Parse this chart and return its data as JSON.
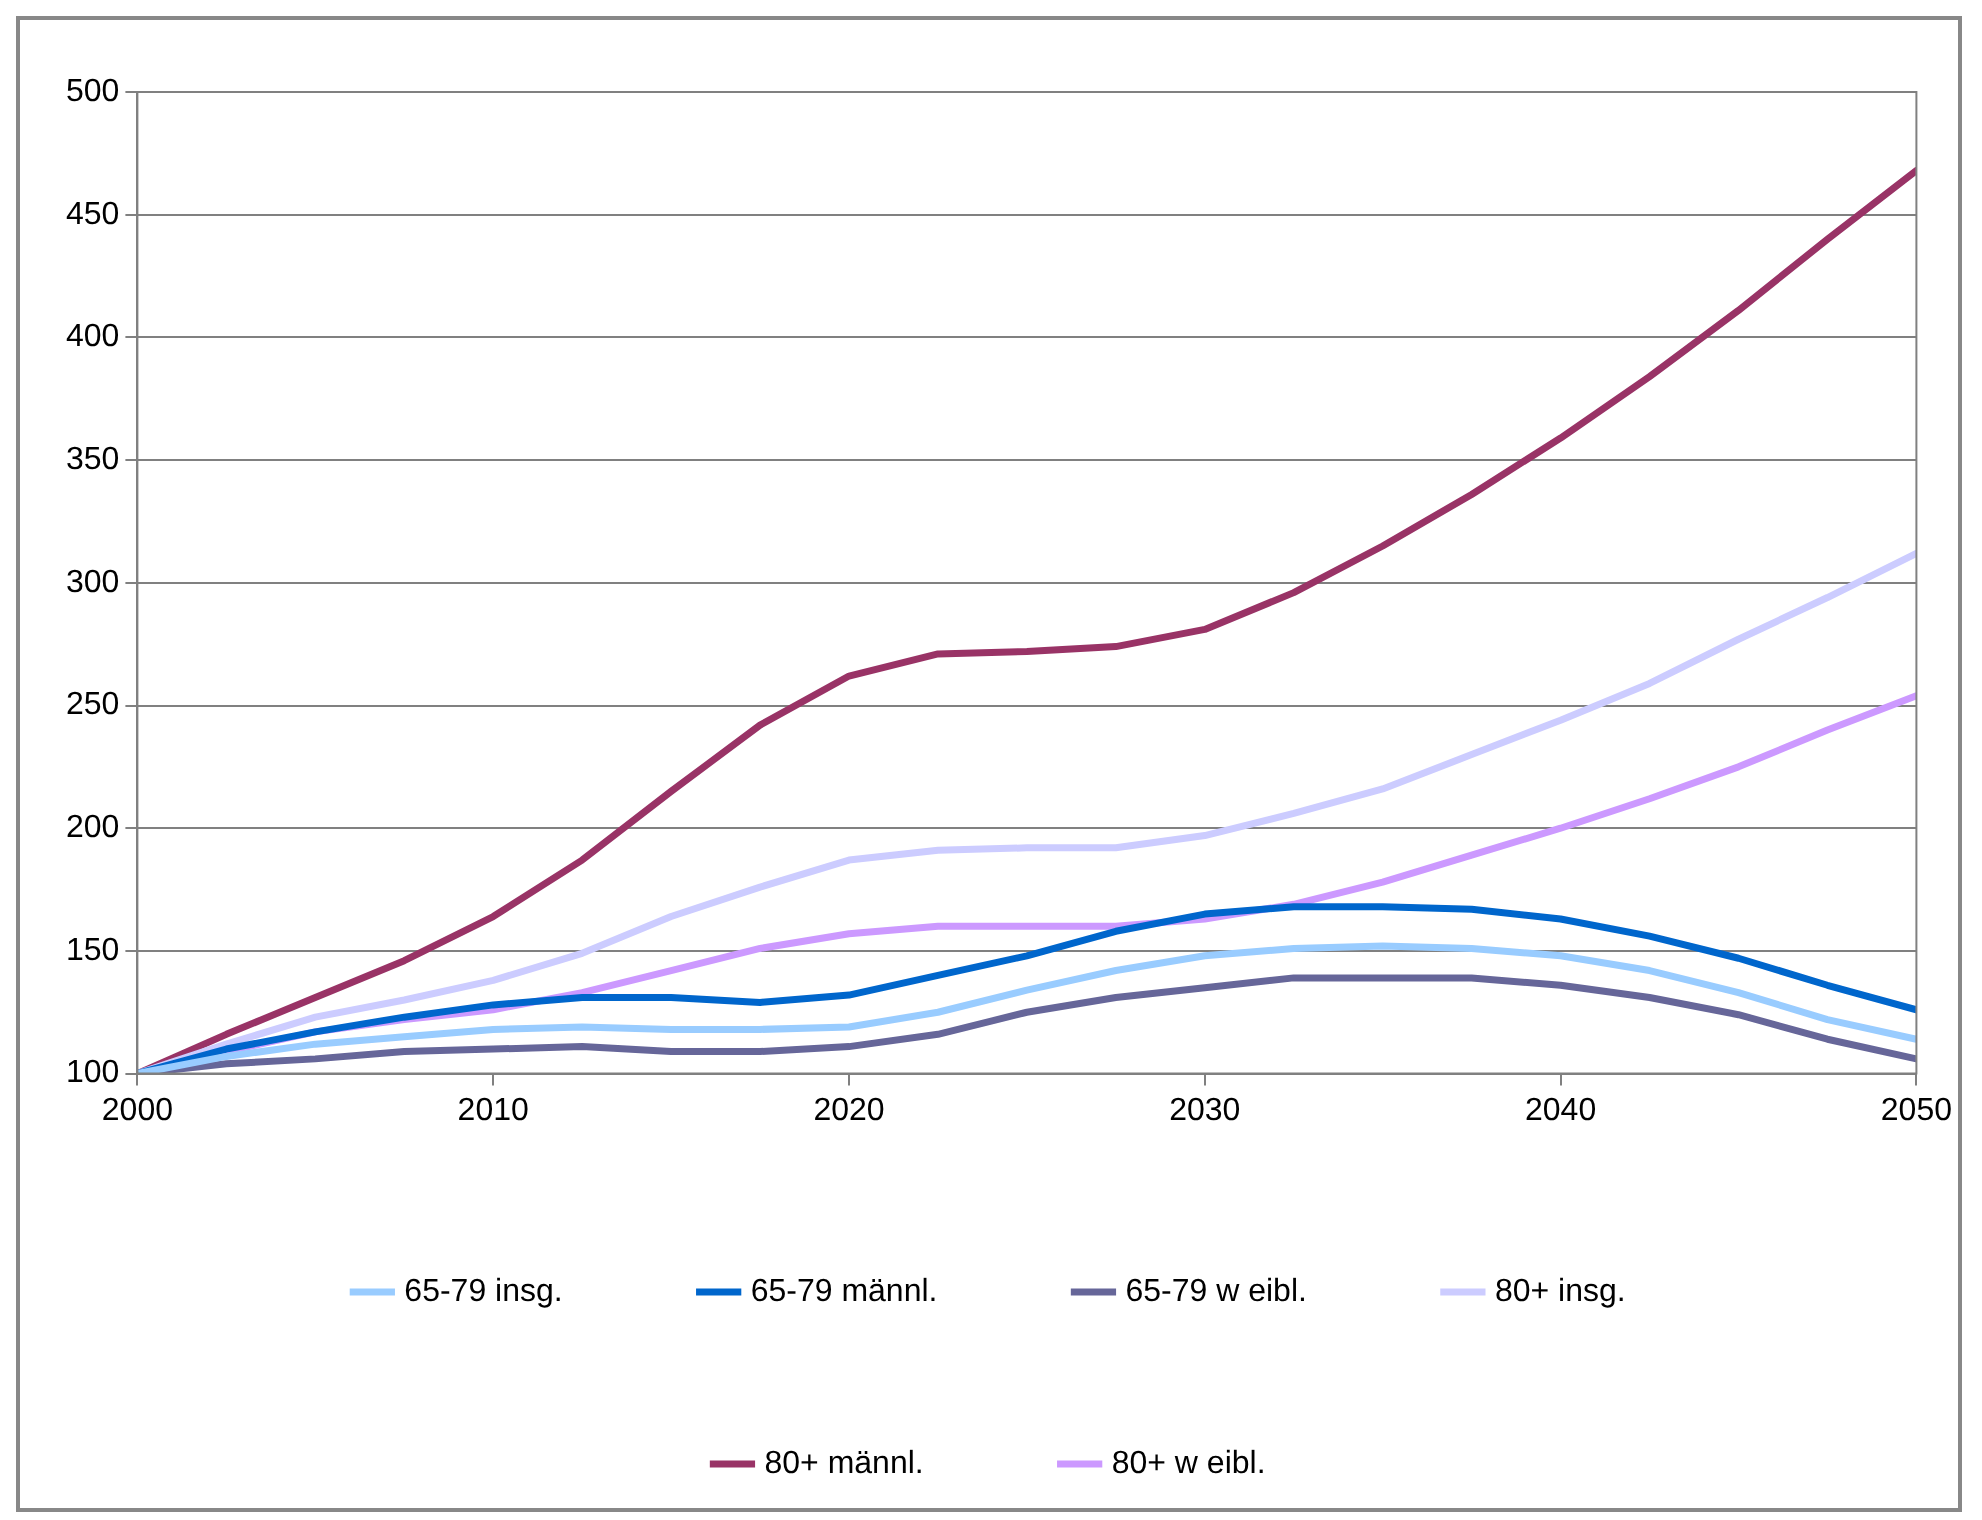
{
  "chart_data": {
    "type": "line",
    "x": [
      2000,
      2002.5,
      2005,
      2007.5,
      2010,
      2012.5,
      2015,
      2017.5,
      2020,
      2022.5,
      2025,
      2027.5,
      2030,
      2032.5,
      2035,
      2037.5,
      2040,
      2042.5,
      2045,
      2047.5,
      2050
    ],
    "xlim": [
      2000,
      2050
    ],
    "xticks": [
      2000,
      2010,
      2020,
      2030,
      2040,
      2050
    ],
    "ylim": [
      100,
      500
    ],
    "yticks": [
      100,
      150,
      200,
      250,
      300,
      350,
      400,
      450,
      500
    ],
    "grid": "y",
    "legend": "bottom",
    "marker": "none",
    "line_style": "solid",
    "series": [
      {
        "name": "65-79 insg.",
        "color": "#99ccff",
        "values": [
          100,
          107,
          112,
          115,
          118,
          119,
          118,
          118,
          119,
          125,
          134,
          142,
          148,
          151,
          152,
          151,
          148,
          142,
          133,
          122,
          114
        ]
      },
      {
        "name": "65-79 männl.",
        "color": "#0066cc",
        "values": [
          100,
          110,
          117,
          123,
          128,
          131,
          131,
          129,
          132,
          140,
          148,
          158,
          165,
          168,
          168,
          167,
          163,
          156,
          147,
          136,
          126
        ]
      },
      {
        "name": "65-79 w eibl.",
        "color": "#666699",
        "values": [
          100,
          104,
          106,
          109,
          110,
          111,
          109,
          109,
          111,
          116,
          125,
          131,
          135,
          139,
          139,
          139,
          136,
          131,
          124,
          114,
          106
        ]
      },
      {
        "name": "80+ insg.",
        "color": "#ccccff",
        "values": [
          100,
          112,
          123,
          130,
          138,
          149,
          164,
          176,
          187,
          191,
          192,
          192,
          197,
          206,
          216,
          230,
          244,
          259,
          277,
          294,
          312
        ]
      },
      {
        "name": "80+ männl.",
        "color": "#993366",
        "values": [
          100,
          116,
          131,
          146,
          164,
          187,
          215,
          242,
          262,
          271,
          272,
          274,
          281,
          296,
          315,
          336,
          359,
          384,
          411,
          440,
          468
        ]
      },
      {
        "name": "80+ w eibl.",
        "color": "#cc99ff",
        "values": [
          100,
          109,
          117,
          122,
          126,
          133,
          142,
          151,
          157,
          160,
          160,
          160,
          163,
          169,
          178,
          189,
          200,
          212,
          225,
          240,
          254
        ]
      }
    ]
  }
}
